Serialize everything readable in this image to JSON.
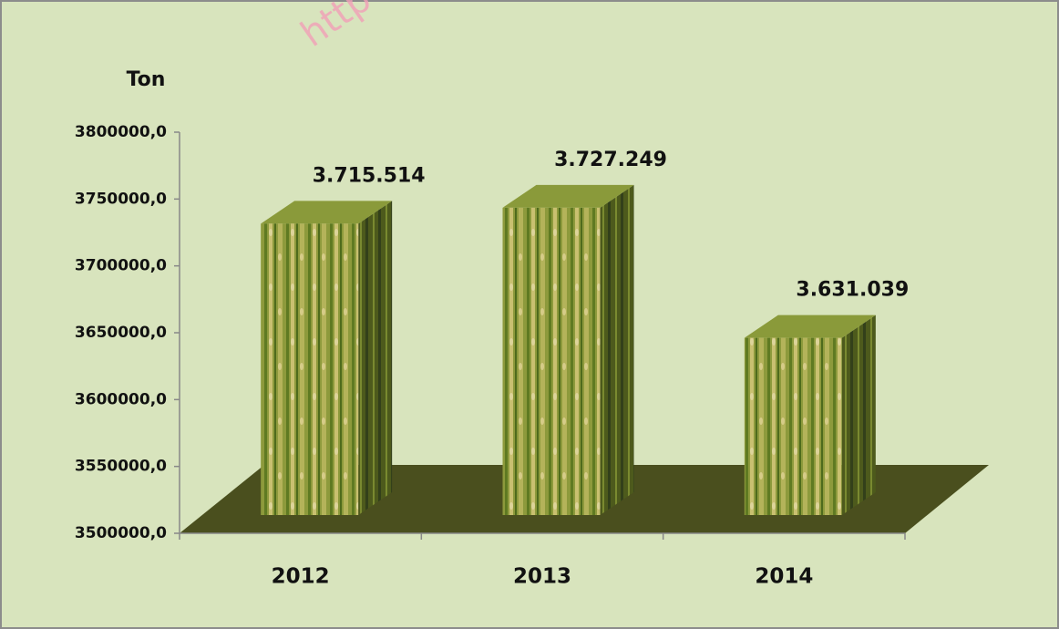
{
  "chart_data": {
    "type": "bar3d",
    "y_label": "Ton",
    "watermark": "http",
    "categories": [
      "2012",
      "2013",
      "2014"
    ],
    "values": [
      3715514,
      3727249,
      3631039
    ],
    "value_labels": [
      "3.715.514",
      "3.727.249",
      "3.631.039"
    ],
    "ylim": [
      3500000,
      3800000
    ],
    "yticks": [
      {
        "value": 3500000,
        "label": "3500000,0"
      },
      {
        "value": 3550000,
        "label": "3550000,0"
      },
      {
        "value": 3600000,
        "label": "3600000,0"
      },
      {
        "value": 3650000,
        "label": "3650000,0"
      },
      {
        "value": 3700000,
        "label": "3700000,0"
      },
      {
        "value": 3750000,
        "label": "3750000,0"
      },
      {
        "value": 3800000,
        "label": "3800000,0"
      }
    ],
    "color": "#8a9a3a",
    "floor_color": "#4a4f1e",
    "background": "#d8e4bd"
  }
}
